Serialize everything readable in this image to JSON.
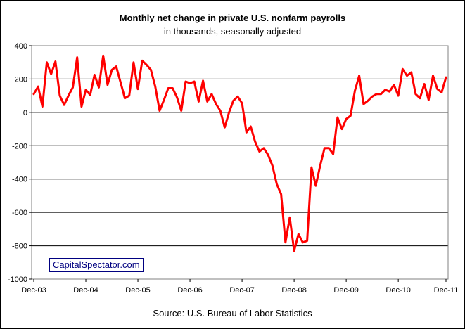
{
  "chart_data": {
    "type": "line",
    "title": "Monthly net change in private U.S. nonfarm payrolls",
    "subtitle": "in thousands, seasonally adjusted",
    "source": "Source: U.S. Bureau of Labor Statistics",
    "watermark": "CapitalSpectator.com",
    "x_tick_labels": [
      "Dec-03",
      "Dec-04",
      "Dec-05",
      "Dec-06",
      "Dec-07",
      "Dec-08",
      "Dec-09",
      "Dec-10",
      "Dec-11"
    ],
    "y_tick_labels": [
      "400",
      "200",
      "0",
      "-200",
      "-400",
      "-600",
      "-800",
      "-1000"
    ],
    "ylim": [
      -1000,
      400
    ],
    "y_ticks": [
      400,
      200,
      0,
      -200,
      -400,
      -600,
      -800,
      -1000
    ],
    "grid": true,
    "line_color": "#ff0000",
    "plot_background": "#ffffff",
    "series": [
      {
        "values": [
          110,
          155,
          35,
          300,
          230,
          305,
          100,
          45,
          100,
          150,
          330,
          35,
          135,
          105,
          225,
          150,
          340,
          165,
          255,
          275,
          180,
          85,
          100,
          300,
          140,
          310,
          285,
          255,
          155,
          10,
          75,
          145,
          145,
          90,
          10,
          185,
          175,
          185,
          65,
          190,
          65,
          110,
          50,
          10,
          -90,
          0,
          70,
          95,
          55,
          -120,
          -85,
          -175,
          -235,
          -215,
          -255,
          -320,
          -430,
          -490,
          -780,
          -630,
          -830,
          -730,
          -780,
          -770,
          -330,
          -440,
          -320,
          -215,
          -215,
          -250,
          -30,
          -100,
          -40,
          -20,
          130,
          220,
          50,
          70,
          95,
          110,
          110,
          135,
          125,
          165,
          100,
          260,
          220,
          240,
          110,
          85,
          170,
          75,
          220,
          140,
          120,
          210
        ]
      }
    ]
  }
}
